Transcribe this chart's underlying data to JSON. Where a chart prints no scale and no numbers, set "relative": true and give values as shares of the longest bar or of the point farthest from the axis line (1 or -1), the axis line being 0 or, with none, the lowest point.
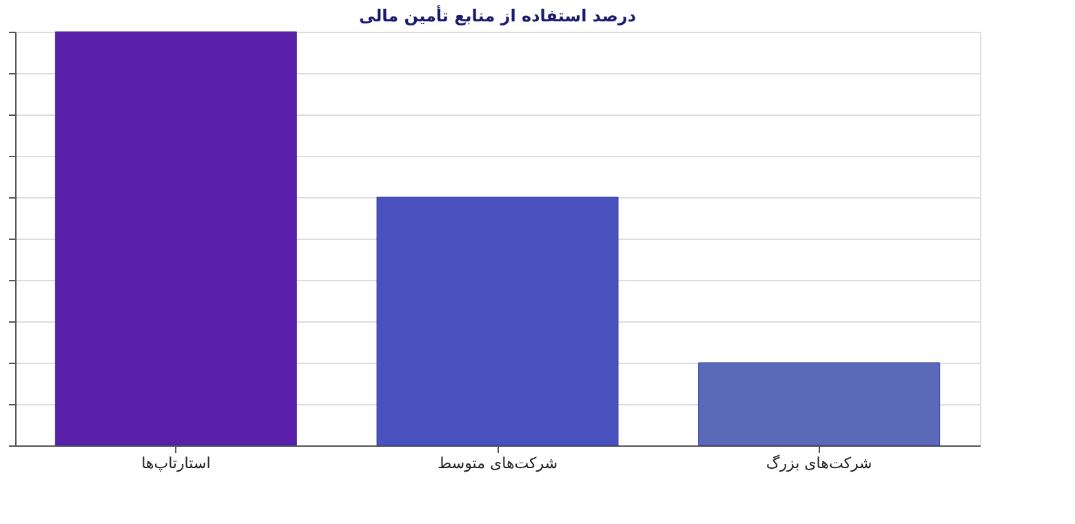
{
  "chart_data": {
    "type": "bar",
    "title": "درصد استفاده از منابع تأمین مالی",
    "categories": [
      "استارتاپ‌ها",
      "شرکت‌های متوسط",
      "شرکت‌های بزرگ"
    ],
    "values": [
      1,
      0.6,
      0.2
    ],
    "colors": [
      "#5a1fa8",
      "#4a52c0",
      "#5a6ab8"
    ],
    "relative": true,
    "grid": "y"
  }
}
